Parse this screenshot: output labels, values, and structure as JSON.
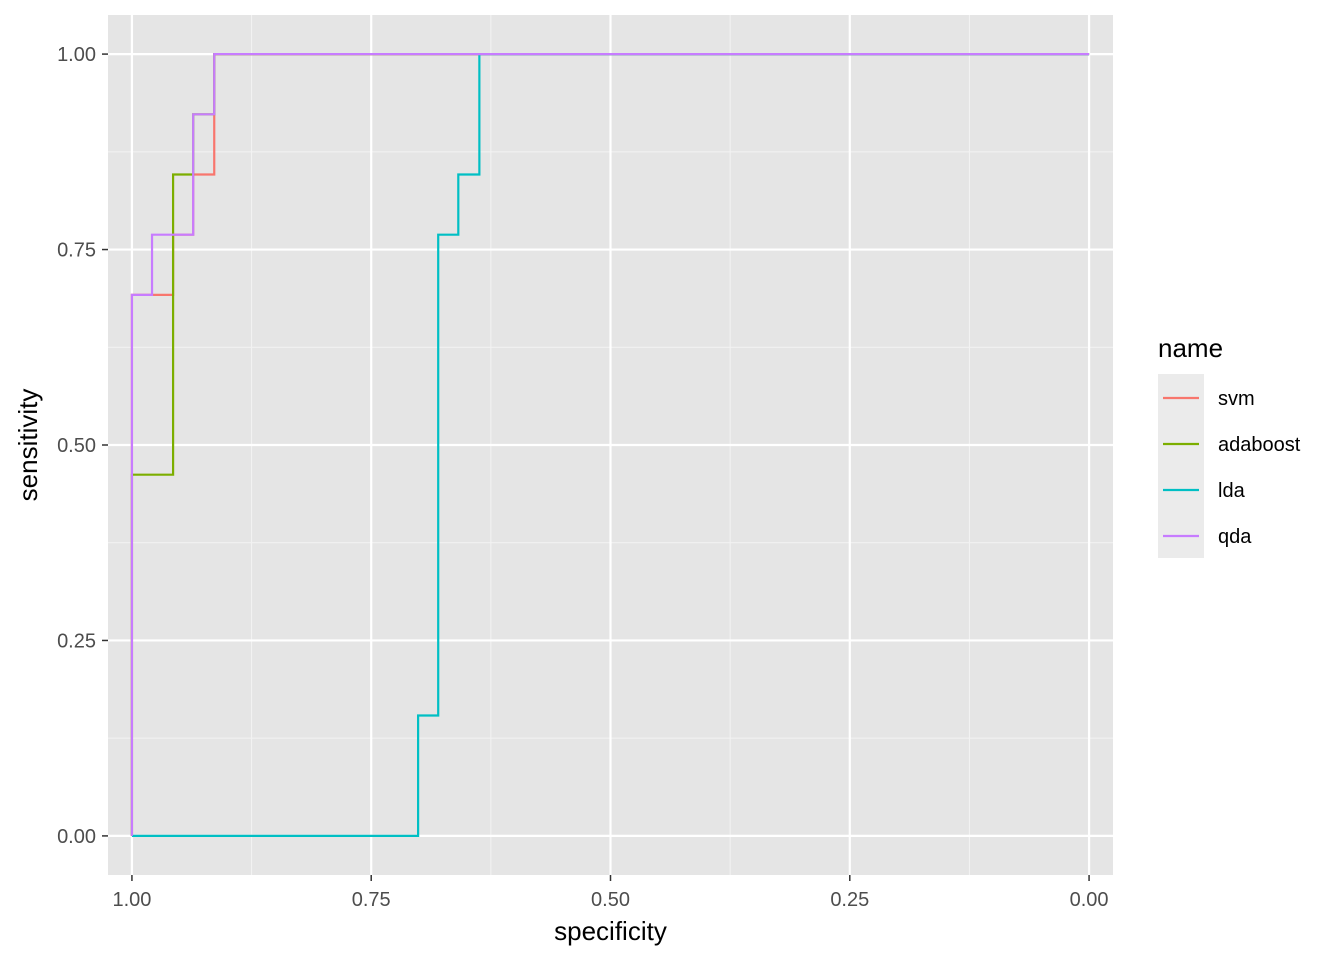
{
  "chart_data": {
    "type": "line",
    "step": true,
    "xlabel": "specificity",
    "ylabel": "sensitivity",
    "x_reversed": true,
    "xlim": [
      1.025,
      -0.025
    ],
    "ylim": [
      -0.05,
      1.05
    ],
    "x_ticks": [
      1.0,
      0.75,
      0.5,
      0.25,
      0.0
    ],
    "x_tick_labels": [
      "1.00",
      "0.75",
      "0.50",
      "0.25",
      "0.00"
    ],
    "y_ticks": [
      0.0,
      0.25,
      0.5,
      0.75,
      1.0
    ],
    "y_tick_labels": [
      "0.00",
      "0.25",
      "0.50",
      "0.75",
      "1.00"
    ],
    "grid": true,
    "background": "#e5e5e5",
    "legend": {
      "title": "name",
      "position": "right"
    },
    "series": [
      {
        "name": "svm",
        "color": "#F8766D",
        "points": [
          [
            1.0,
            0.0
          ],
          [
            1.0,
            0.692
          ],
          [
            0.957,
            0.692
          ],
          [
            0.957,
            0.769
          ],
          [
            0.936,
            0.769
          ],
          [
            0.936,
            0.846
          ],
          [
            0.914,
            0.846
          ],
          [
            0.914,
            0.923
          ],
          [
            0.914,
            1.0
          ],
          [
            0.0,
            1.0
          ]
        ]
      },
      {
        "name": "adaboost",
        "color": "#7CAE00",
        "points": [
          [
            1.0,
            0.0
          ],
          [
            1.0,
            0.462
          ],
          [
            0.957,
            0.462
          ],
          [
            0.957,
            0.846
          ],
          [
            0.936,
            0.846
          ],
          [
            0.936,
            0.923
          ],
          [
            0.914,
            0.923
          ],
          [
            0.914,
            1.0
          ],
          [
            0.0,
            1.0
          ]
        ]
      },
      {
        "name": "lda",
        "color": "#00BFC4",
        "points": [
          [
            1.0,
            0.0
          ],
          [
            0.701,
            0.0
          ],
          [
            0.701,
            0.154
          ],
          [
            0.68,
            0.154
          ],
          [
            0.68,
            0.769
          ],
          [
            0.659,
            0.769
          ],
          [
            0.659,
            0.846
          ],
          [
            0.637,
            0.846
          ],
          [
            0.637,
            1.0
          ],
          [
            0.0,
            1.0
          ]
        ]
      },
      {
        "name": "qda",
        "color": "#C77CFF",
        "points": [
          [
            1.0,
            0.0
          ],
          [
            1.0,
            0.692
          ],
          [
            0.979,
            0.692
          ],
          [
            0.979,
            0.769
          ],
          [
            0.936,
            0.769
          ],
          [
            0.936,
            0.923
          ],
          [
            0.914,
            0.923
          ],
          [
            0.914,
            1.0
          ],
          [
            0.0,
            1.0
          ]
        ]
      }
    ]
  }
}
